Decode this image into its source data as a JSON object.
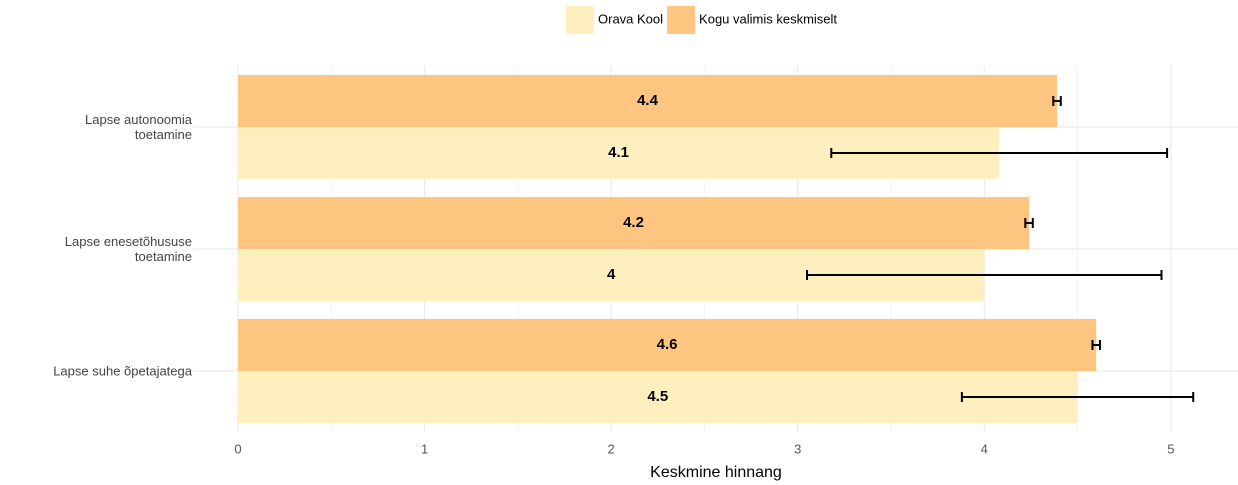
{
  "chart_data": {
    "type": "bar",
    "orientation": "horizontal",
    "categories": [
      "Lapse autonoomia\ntoetamine",
      "Lapse enesetõhususe\ntoetamine",
      "Lapse suhe õpetajatega"
    ],
    "series": [
      {
        "name": "Orava Kool",
        "color": "#fef0be",
        "values": [
          4.08,
          4.0,
          4.5
        ],
        "value_labels": [
          "4.1",
          "4",
          "4.5"
        ],
        "errors": [
          0.9,
          0.95,
          0.62
        ]
      },
      {
        "name": "Kogu valimis keskmiselt",
        "color": "#fdc57f",
        "values": [
          4.39,
          4.24,
          4.6
        ],
        "value_labels": [
          "4.4",
          "4.2",
          "4.6"
        ],
        "errors": [
          0.02,
          0.02,
          0.02
        ]
      }
    ],
    "xlabel": "Keskmine hinnang",
    "xlim": [
      0,
      5.36
    ],
    "xticks": [
      0,
      1,
      2,
      3,
      4,
      5
    ],
    "xminorticks": [
      0.5,
      1.5,
      2.5,
      3.5,
      4.5
    ],
    "grid": true,
    "legend": "top"
  }
}
